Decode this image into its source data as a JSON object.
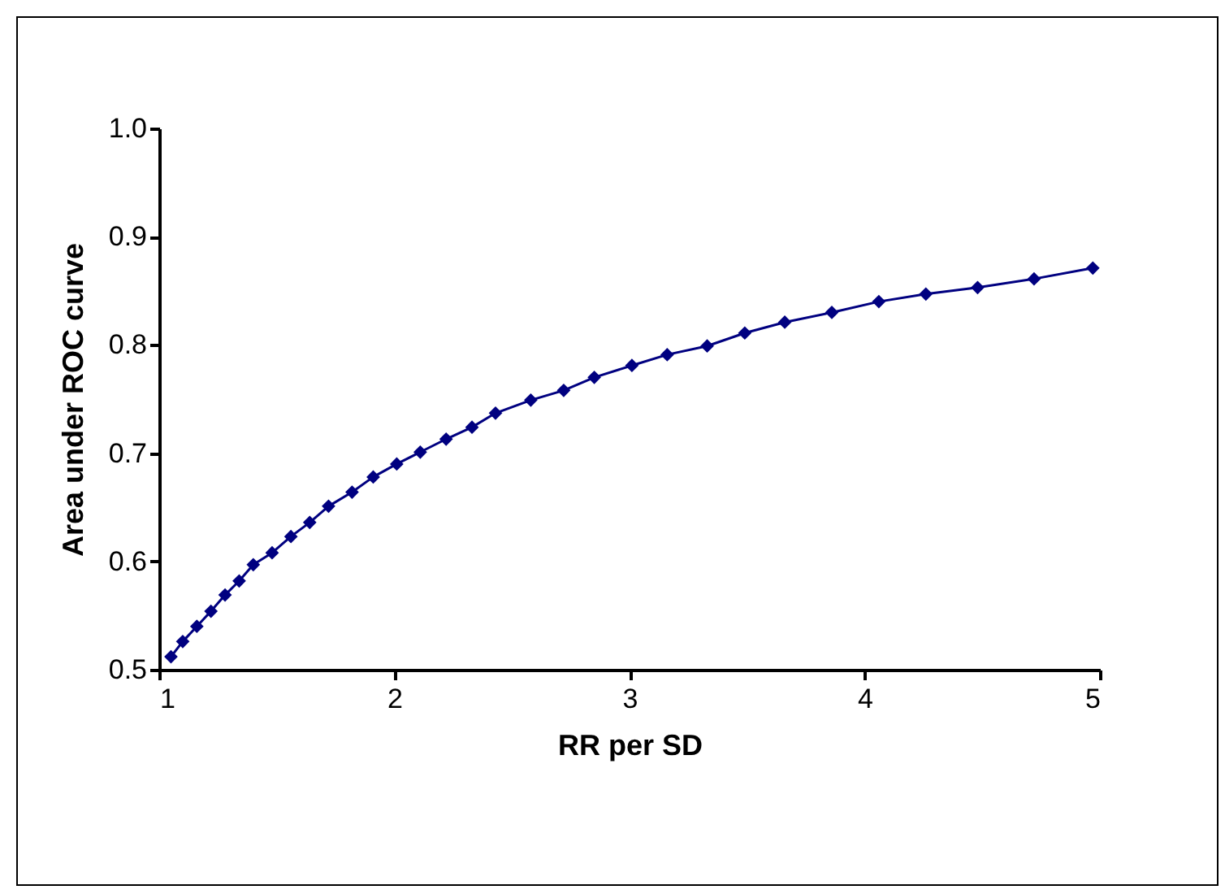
{
  "chart_data": {
    "type": "line",
    "xlabel": "RR per SD",
    "ylabel": "Area under ROC curve",
    "x": [
      1.05,
      1.1,
      1.16,
      1.22,
      1.28,
      1.34,
      1.4,
      1.48,
      1.56,
      1.64,
      1.72,
      1.82,
      1.91,
      2.01,
      2.11,
      2.22,
      2.33,
      2.43,
      2.58,
      2.72,
      2.85,
      3.01,
      3.16,
      3.33,
      3.49,
      3.66,
      3.86,
      4.06,
      4.26,
      4.48,
      4.72,
      4.97
    ],
    "series": [
      {
        "color": "#000080",
        "values": [
          0.512,
          0.526,
          0.54,
          0.554,
          0.569,
          0.582,
          0.597,
          0.608,
          0.623,
          0.636,
          0.651,
          0.664,
          0.678,
          0.69,
          0.701,
          0.713,
          0.724,
          0.737,
          0.749,
          0.758,
          0.77,
          0.781,
          0.791,
          0.799,
          0.811,
          0.821,
          0.83,
          0.84,
          0.847,
          0.853,
          0.861,
          0.871
        ]
      }
    ],
    "xlim": [
      1,
      5
    ],
    "xticks": [
      1,
      2,
      3,
      4,
      5
    ],
    "ylim": [
      0.5,
      1
    ],
    "yticks": [
      0.5,
      0.6,
      0.7,
      0.8,
      0.9,
      {
        "value": 1,
        "label": "1.0"
      }
    ],
    "marker": "diamond",
    "line_style": "solid",
    "grid": false,
    "legend": false
  }
}
